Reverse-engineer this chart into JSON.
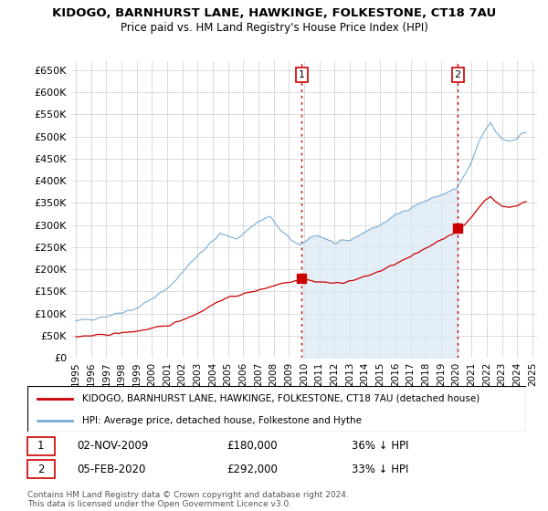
{
  "title": "KIDOGO, BARNHURST LANE, HAWKINGE, FOLKESTONE, CT18 7AU",
  "subtitle": "Price paid vs. HM Land Registry's House Price Index (HPI)",
  "ylim": [
    0,
    670000
  ],
  "yticks": [
    0,
    50000,
    100000,
    150000,
    200000,
    250000,
    300000,
    350000,
    400000,
    450000,
    500000,
    550000,
    600000,
    650000
  ],
  "xlim_start": 1994.7,
  "xlim_end": 2025.3,
  "xticks": [
    1995,
    1996,
    1997,
    1998,
    1999,
    2000,
    2001,
    2002,
    2003,
    2004,
    2005,
    2006,
    2007,
    2008,
    2009,
    2010,
    2011,
    2012,
    2013,
    2014,
    2015,
    2016,
    2017,
    2018,
    2019,
    2020,
    2021,
    2022,
    2023,
    2024,
    2025
  ],
  "hpi_color": "#7aadd4",
  "hpi_fill_color": "#d9e8f5",
  "price_color": "#cc0000",
  "vline_color": "#cc0000",
  "vline_style": ":",
  "grid_color": "#cccccc",
  "background_color": "#ffffff",
  "transactions": [
    {
      "label": "1",
      "date_x": 2009.84,
      "price": 180000,
      "date_str": "02-NOV-2009",
      "pct": "36% ↓ HPI"
    },
    {
      "label": "2",
      "date_x": 2020.09,
      "price": 292000,
      "date_str": "05-FEB-2020",
      "pct": "33% ↓ HPI"
    }
  ],
  "legend_property_label": "KIDOGO, BARNHURST LANE, HAWKINGE, FOLKESTONE, CT18 7AU (detached house)",
  "legend_hpi_label": "HPI: Average price, detached house, Folkestone and Hythe",
  "footnote": "Contains HM Land Registry data © Crown copyright and database right 2024.\nThis data is licensed under the Open Government Licence v3.0."
}
